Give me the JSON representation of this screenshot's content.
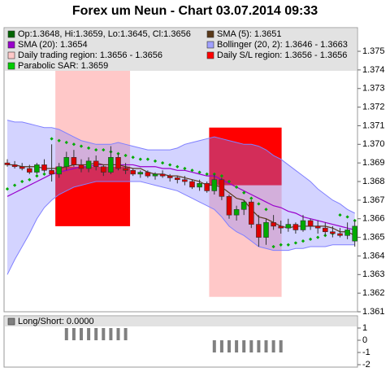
{
  "chart_data": {
    "type": "candlestick",
    "title": "Forex um Neun - Chart 03.07.2014 09:33",
    "legend": [
      {
        "label": "Op:1.3648, Hi:1.3659, Lo:1.3645, Cl:1.3656",
        "color": "#006400"
      },
      {
        "label": "SMA (5): 1.3651",
        "color": "#5a3a1a"
      },
      {
        "label": "SMA (20): 1.3654",
        "color": "#9900cc"
      },
      {
        "label": "Bollinger (20, 2): 1.3646 - 1.3663",
        "color": "#a0a0ff"
      },
      {
        "label": "Daily trading region: 1.3656 - 1.3656",
        "color": "#ffc8c8"
      },
      {
        "label": "Daily S/L region: 1.3656 - 1.3656",
        "color": "#ff0000"
      },
      {
        "label": "Parabolic SAR: 1.3659",
        "color": "#00cc00"
      }
    ],
    "ylim": [
      1.361,
      1.37627
    ],
    "yticks": [
      1.361,
      1.362,
      1.363,
      1.364,
      1.365,
      1.366,
      1.367,
      1.368,
      1.369,
      {
        "value": 1.37,
        "label": "1.370"
      },
      1.371,
      1.372,
      1.373,
      1.374,
      1.375
    ],
    "up_color": "#00aa00",
    "down_color": "#dd0000",
    "open": [
      1.369,
      1.3689,
      1.3688,
      1.3687,
      1.3685,
      1.3689,
      1.3686,
      1.3684,
      1.3688,
      1.3693,
      1.3689,
      1.3687,
      1.3691,
      1.3688,
      1.3685,
      1.3693,
      1.3687,
      1.3686,
      1.3684,
      1.3685,
      1.3683,
      1.3684,
      1.3683,
      1.3682,
      1.3681,
      1.368,
      1.3677,
      1.3679,
      1.3675,
      1.3681,
      1.3672,
      1.3662,
      1.3665,
      1.3669,
      1.3657,
      1.365,
      1.3658,
      1.3656,
      1.3655,
      1.3657,
      1.3654,
      1.3659,
      1.3656,
      1.3655,
      1.3653,
      1.3652,
      1.3651,
      1.3648
    ],
    "high": [
      1.3692,
      1.3691,
      1.369,
      1.3689,
      1.369,
      1.3692,
      1.37,
      1.369,
      1.3696,
      1.3697,
      1.3692,
      1.3693,
      1.3694,
      1.3689,
      1.3699,
      1.3695,
      1.369,
      1.3687,
      1.3686,
      1.3686,
      1.3685,
      1.3686,
      1.3684,
      1.3683,
      1.3683,
      1.3681,
      1.3681,
      1.368,
      1.3684,
      1.3682,
      1.3673,
      1.3667,
      1.367,
      1.367,
      1.3662,
      1.366,
      1.3662,
      1.3659,
      1.366,
      1.3658,
      1.3662,
      1.366,
      1.3659,
      1.3658,
      1.3656,
      1.3655,
      1.3658,
      1.3659
    ],
    "low": [
      1.3688,
      1.3687,
      1.3686,
      1.3684,
      1.3684,
      1.3685,
      1.368,
      1.3682,
      1.3686,
      1.3688,
      1.3685,
      1.3685,
      1.3686,
      1.3683,
      1.3684,
      1.3686,
      1.3684,
      1.3683,
      1.3682,
      1.3682,
      1.3681,
      1.3682,
      1.368,
      1.3679,
      1.3678,
      1.3676,
      1.3675,
      1.3674,
      1.3673,
      1.367,
      1.366,
      1.3659,
      1.3662,
      1.3655,
      1.3645,
      1.3646,
      1.3654,
      1.3652,
      1.3653,
      1.3652,
      1.3653,
      1.3654,
      1.3652,
      1.3651,
      1.365,
      1.365,
      1.3649,
      1.3645
    ],
    "close": [
      1.3689,
      1.3688,
      1.3687,
      1.3685,
      1.3689,
      1.3686,
      1.3684,
      1.3688,
      1.3693,
      1.3689,
      1.3687,
      1.3691,
      1.3688,
      1.3685,
      1.3693,
      1.3687,
      1.3686,
      1.3684,
      1.3685,
      1.3683,
      1.3684,
      1.3683,
      1.3682,
      1.3681,
      1.368,
      1.3677,
      1.3679,
      1.3675,
      1.3681,
      1.3672,
      1.3662,
      1.3665,
      1.3669,
      1.3657,
      1.365,
      1.3658,
      1.3656,
      1.3655,
      1.3657,
      1.3654,
      1.3659,
      1.3656,
      1.3655,
      1.3653,
      1.3652,
      1.3651,
      1.3654,
      1.3656
    ],
    "band": {
      "color": "#8080ff",
      "upper": [
        1.3713,
        1.3712,
        1.3712,
        1.3711,
        1.371,
        1.3709,
        1.3709,
        1.3708,
        1.3706,
        1.3704,
        1.3702,
        1.3701,
        1.37,
        1.37,
        1.37,
        1.3701,
        1.37,
        1.3699,
        1.3698,
        1.3697,
        1.3697,
        1.3697,
        1.3697,
        1.3698,
        1.37,
        1.3701,
        1.3702,
        1.3703,
        1.3704,
        1.3703,
        1.3702,
        1.3701,
        1.37,
        1.37,
        1.3699,
        1.3697,
        1.3694,
        1.3692,
        1.3689,
        1.3686,
        1.3683,
        1.368,
        1.3676,
        1.3673,
        1.367,
        1.3668,
        1.3665,
        1.3663
      ],
      "lower": [
        1.363,
        1.3638,
        1.3645,
        1.3652,
        1.366,
        1.3666,
        1.367,
        1.3673,
        1.3675,
        1.3677,
        1.3678,
        1.3679,
        1.368,
        1.368,
        1.368,
        1.368,
        1.368,
        1.368,
        1.368,
        1.3679,
        1.3678,
        1.3677,
        1.3676,
        1.3675,
        1.3673,
        1.3671,
        1.3669,
        1.3667,
        1.3665,
        1.3661,
        1.3656,
        1.3653,
        1.3651,
        1.3648,
        1.3645,
        1.3644,
        1.3643,
        1.3643,
        1.3643,
        1.3644,
        1.3644,
        1.3645,
        1.3645,
        1.3645,
        1.3646,
        1.3646,
        1.3646,
        1.3646
      ]
    },
    "lines": [
      {
        "color": "#9900cc",
        "values": [
          1.3672,
          1.3674,
          1.3676,
          1.3678,
          1.368,
          1.3682,
          1.3684,
          1.3685,
          1.3686,
          1.3687,
          1.3688,
          1.3688,
          1.3689,
          1.3689,
          1.3689,
          1.3689,
          1.3689,
          1.3689,
          1.3688,
          1.3688,
          1.3688,
          1.3687,
          1.3687,
          1.3686,
          1.3686,
          1.3685,
          1.3684,
          1.3683,
          1.3683,
          1.3681,
          1.3679,
          1.3677,
          1.3675,
          1.3673,
          1.3671,
          1.3669,
          1.3667,
          1.3666,
          1.3664,
          1.3663,
          1.3661,
          1.366,
          1.3659,
          1.3658,
          1.3657,
          1.3656,
          1.3655,
          1.3654
        ]
      },
      {
        "color": "#5a3a1a",
        "values": [
          1.3689,
          1.3689,
          1.3688,
          1.3688,
          1.3688,
          1.3687,
          1.3687,
          1.3687,
          1.3688,
          1.3689,
          1.3689,
          1.3689,
          1.369,
          1.3689,
          1.3689,
          1.3689,
          1.3688,
          1.3687,
          1.3687,
          1.3685,
          1.3684,
          1.3684,
          1.3683,
          1.3683,
          1.3682,
          1.3681,
          1.368,
          1.3678,
          1.3678,
          1.3677,
          1.3674,
          1.3671,
          1.367,
          1.3665,
          1.3661,
          1.366,
          1.3658,
          1.3656,
          1.3655,
          1.3656,
          1.3656,
          1.3656,
          1.3656,
          1.3656,
          1.3655,
          1.3653,
          1.3653,
          1.3651
        ]
      }
    ],
    "sar": {
      "color": "#00aa00",
      "values": [
        1.3676,
        1.3678,
        1.368,
        1.3681,
        1.3683,
        1.3684,
        1.3703,
        1.3702,
        1.3701,
        1.37,
        1.3699,
        1.3698,
        1.3697,
        1.3697,
        1.3696,
        1.3695,
        1.3694,
        1.3693,
        1.3692,
        1.3692,
        1.3691,
        1.369,
        1.3689,
        1.3688,
        1.3687,
        1.3686,
        1.3685,
        1.3684,
        1.3684,
        1.3683,
        1.368,
        1.3677,
        1.3674,
        1.3671,
        1.3668,
        1.3665,
        1.3645,
        1.3646,
        1.3646,
        1.3647,
        1.3648,
        1.3649,
        1.365,
        1.3651,
        1.3652,
        1.3662,
        1.3661,
        1.3659
      ]
    },
    "regions": [
      {
        "color": "#ffc8c8",
        "x": [
          6.5,
          16.6
        ],
        "y": [
          1.3656,
          1.374
        ]
      },
      {
        "color": "#ff0000",
        "x": [
          6.5,
          16.6
        ],
        "y": [
          1.3656,
          1.3688
        ]
      },
      {
        "color": "#ffc8c8",
        "x": [
          27.3,
          37.1
        ],
        "y": [
          1.3618,
          1.3678
        ]
      },
      {
        "color": "#ff0000",
        "x": [
          27.3,
          37.1
        ],
        "y": [
          1.3678,
          1.3709
        ]
      }
    ],
    "indicator": {
      "type": "bar",
      "label": "Long/Short: 0.0000",
      "legend_color": "#808080",
      "color": "#808080",
      "ylim": [
        -2.2,
        2
      ],
      "yticks": [
        1,
        0,
        -1,
        -2
      ],
      "values": [
        0,
        0,
        0,
        0,
        0,
        0,
        0,
        0,
        1,
        1,
        1,
        1,
        1,
        1,
        1,
        1,
        1,
        0,
        0,
        0,
        0,
        0,
        0,
        0,
        0,
        0,
        0,
        0,
        -1,
        -1,
        -1,
        -1,
        -1,
        -1,
        -1,
        -1,
        -1,
        -1,
        0,
        0,
        0,
        0,
        0,
        0,
        0,
        0,
        0,
        0
      ]
    }
  }
}
